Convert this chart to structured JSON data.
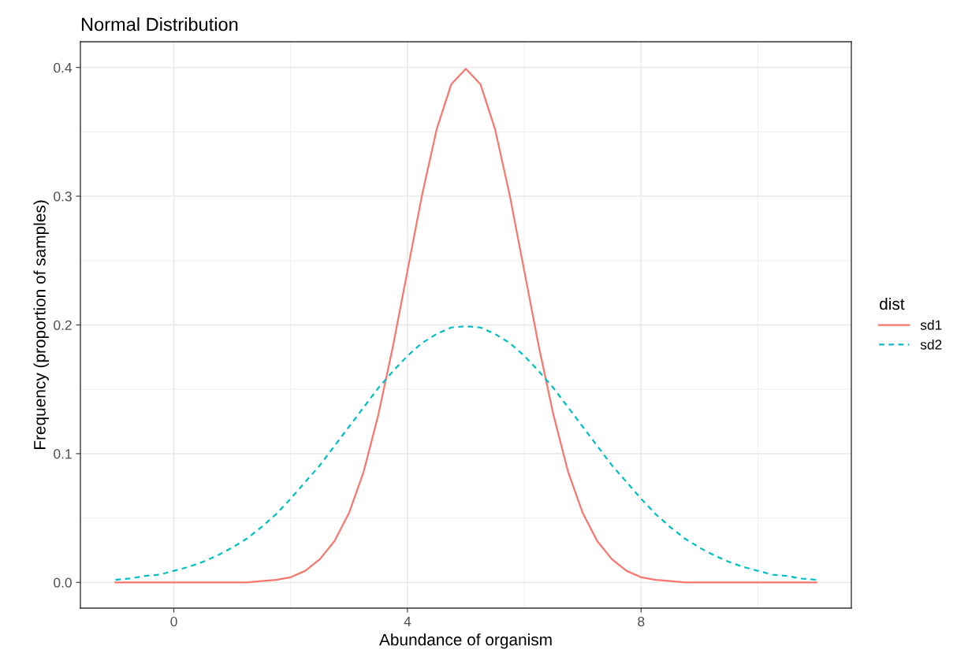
{
  "chart_data": {
    "type": "line",
    "title": "Normal Distribution",
    "xlabel": "Abundance of organism",
    "ylabel": "Frequency (proportion of samples)",
    "legend_title": "dist",
    "legend": "right",
    "grid": true,
    "xlim": [
      -1.6,
      11.6
    ],
    "xticks": [
      0,
      4,
      8
    ],
    "ylim": [
      -0.02,
      0.42
    ],
    "yticks": [
      {
        "value": 0,
        "label": "0.0"
      },
      0.1,
      0.2,
      0.3,
      0.4
    ],
    "x": [
      -1,
      -0.75,
      -0.5,
      -0.25,
      0,
      0.25,
      0.5,
      0.75,
      1,
      1.25,
      1.5,
      1.75,
      2,
      2.25,
      2.5,
      2.75,
      3,
      3.25,
      3.5,
      3.75,
      4,
      4.25,
      4.5,
      4.75,
      5,
      5.25,
      5.5,
      5.75,
      6,
      6.25,
      6.5,
      6.75,
      7,
      7.25,
      7.5,
      7.75,
      8,
      8.25,
      8.5,
      8.75,
      9,
      9.25,
      9.5,
      9.75,
      10,
      10.25,
      10.5,
      10.75,
      11
    ],
    "series": [
      {
        "name": "sd1",
        "color": "#f8766d",
        "line_style": "solid",
        "values": [
          0,
          0,
          0,
          0,
          0,
          0,
          0,
          0,
          0,
          0,
          0.001,
          0.002,
          0.004,
          0.009,
          0.018,
          0.032,
          0.054,
          0.086,
          0.13,
          0.183,
          0.242,
          0.301,
          0.352,
          0.387,
          0.399,
          0.387,
          0.352,
          0.301,
          0.242,
          0.183,
          0.13,
          0.086,
          0.054,
          0.032,
          0.018,
          0.009,
          0.004,
          0.002,
          0.001,
          0,
          0,
          0,
          0,
          0,
          0,
          0,
          0,
          0,
          0
        ]
      },
      {
        "name": "sd2",
        "color": "#00bfc4",
        "line_style": "dashed",
        "values": [
          0.002,
          0.003,
          0.005,
          0.006,
          0.009,
          0.012,
          0.016,
          0.021,
          0.027,
          0.034,
          0.043,
          0.053,
          0.065,
          0.078,
          0.091,
          0.106,
          0.121,
          0.136,
          0.151,
          0.164,
          0.176,
          0.186,
          0.193,
          0.198,
          0.199,
          0.198,
          0.193,
          0.186,
          0.176,
          0.164,
          0.151,
          0.136,
          0.121,
          0.106,
          0.091,
          0.078,
          0.065,
          0.053,
          0.043,
          0.034,
          0.027,
          0.021,
          0.016,
          0.012,
          0.009,
          0.006,
          0.005,
          0.003,
          0.002
        ]
      }
    ]
  }
}
